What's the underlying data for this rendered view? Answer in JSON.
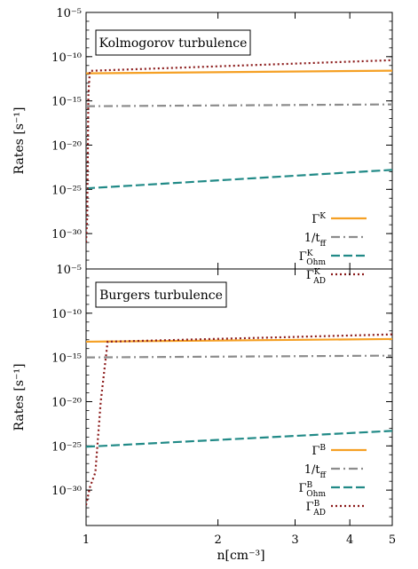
{
  "chart_data": [
    {
      "type": "line",
      "title": "Kolmogorov turbulence",
      "xlabel": "",
      "ylabel": "Rates [s⁻¹]",
      "xscale": "log",
      "yscale": "log",
      "xlim": [
        1,
        5
      ],
      "ylim": [
        1e-34,
        1e-05
      ],
      "yticks": [
        {
          "value": 1e-05,
          "label": "10⁻⁵"
        },
        {
          "value": 1e-10,
          "label": "10⁻¹⁰"
        },
        {
          "value": 1e-15,
          "label": "10⁻¹⁵"
        },
        {
          "value": 1e-20,
          "label": "10⁻²⁰"
        },
        {
          "value": 1e-25,
          "label": "10⁻²⁵"
        },
        {
          "value": 1e-30,
          "label": "10⁻³⁰"
        }
      ],
      "legend_position": "bottom-right",
      "series": [
        {
          "name": "ΓK",
          "label_main": "Γ",
          "label_sup": "K",
          "label_sub": "",
          "color": "#f5a024",
          "dash": "",
          "x": [
            1,
            5
          ],
          "y": [
            1.3e-12,
            2.6e-12
          ]
        },
        {
          "name": "1/tff",
          "label_main": "1/t",
          "label_sup": "",
          "label_sub": "ff",
          "color": "#8c8c8c",
          "dash": "10 4 2 4",
          "x": [
            1,
            5
          ],
          "y": [
            2.5e-16,
            4e-16
          ]
        },
        {
          "name": "ΓK Ohm",
          "label_main": "Γ",
          "label_sup": "K",
          "label_sub": "Ohm",
          "color": "#218a87",
          "dash": "10 4",
          "x": [
            1,
            5
          ],
          "y": [
            1.3e-25,
            1.6e-23
          ]
        },
        {
          "name": "ΓK AD",
          "label_main": "Γ",
          "label_sup": "K",
          "label_sub": "AD",
          "color": "#8b1a1a",
          "dash": "2 3",
          "x": [
            1,
            1.006,
            1.012,
            1.02,
            5
          ],
          "y": [
            1e-31,
            1e-28,
            4e-15,
            2.5e-12,
            4e-11
          ]
        }
      ]
    },
    {
      "type": "line",
      "title": "Burgers turbulence",
      "xlabel": "n[cm⁻³]",
      "ylabel": "Rates [s⁻¹]",
      "xscale": "log",
      "yscale": "log",
      "xlim": [
        1,
        5
      ],
      "ylim": [
        1e-34,
        1e-05
      ],
      "yticks": [
        {
          "value": 1e-05,
          "label": "10⁻⁵"
        },
        {
          "value": 1e-10,
          "label": "10⁻¹⁰"
        },
        {
          "value": 1e-15,
          "label": "10⁻¹⁵"
        },
        {
          "value": 1e-20,
          "label": "10⁻²⁰"
        },
        {
          "value": 1e-25,
          "label": "10⁻²⁵"
        },
        {
          "value": 1e-30,
          "label": "10⁻³⁰"
        }
      ],
      "xticks": [
        {
          "value": 1,
          "label": "1"
        },
        {
          "value": 2,
          "label": "2"
        },
        {
          "value": 3,
          "label": "3"
        },
        {
          "value": 4,
          "label": "4"
        },
        {
          "value": 5,
          "label": "5"
        }
      ],
      "legend_position": "bottom-right",
      "series": [
        {
          "name": "ΓB",
          "label_main": "Γ",
          "label_sup": "B",
          "label_sub": "",
          "color": "#f5a024",
          "dash": "",
          "x": [
            1,
            5
          ],
          "y": [
            6e-14,
            1.2e-13
          ]
        },
        {
          "name": "1/tff",
          "label_main": "1/t",
          "label_sup": "",
          "label_sub": "ff",
          "color": "#8c8c8c",
          "dash": "10 4 2 4",
          "x": [
            1,
            5
          ],
          "y": [
            1e-15,
            1.6e-15
          ]
        },
        {
          "name": "ΓB Ohm",
          "label_main": "Γ",
          "label_sup": "B",
          "label_sub": "Ohm",
          "color": "#218a87",
          "dash": "10 4",
          "x": [
            1,
            5
          ],
          "y": [
            8e-26,
            5e-24
          ]
        },
        {
          "name": "ΓB AD",
          "label_main": "Γ",
          "label_sup": "B",
          "label_sub": "AD",
          "color": "#8b1a1a",
          "dash": "2 3",
          "x": [
            1,
            1.02,
            1.05,
            1.08,
            1.12,
            5
          ],
          "y": [
            2e-32,
            2e-30,
            1e-28,
            1e-20,
            6e-14,
            4e-13
          ]
        }
      ]
    }
  ]
}
